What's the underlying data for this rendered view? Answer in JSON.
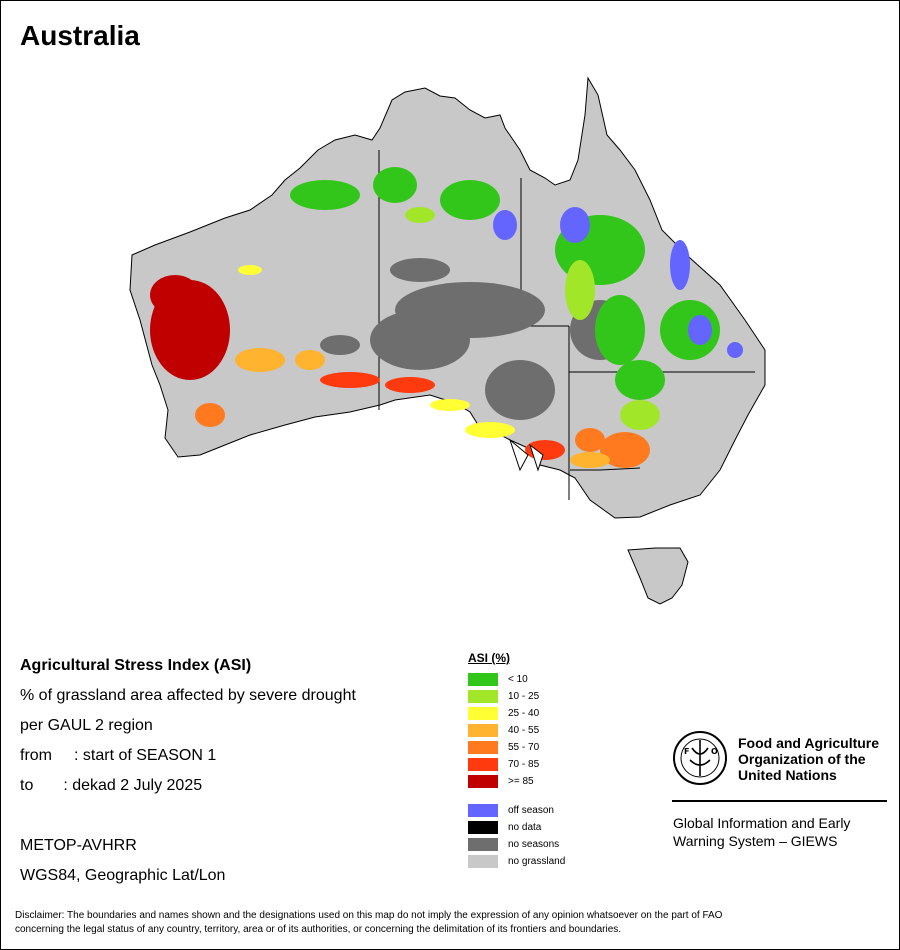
{
  "map_title": "Australia",
  "info": {
    "title": "Agricultural Stress Index (ASI)",
    "line1": "% of grassland area affected by severe drought",
    "line2": "per GAUL 2 region",
    "from_label": "from",
    "from_value": ": start of SEASON 1",
    "to_label": "to",
    "to_value": ": dekad 2 July 2025",
    "sensor": "METOP-AVHRR",
    "projection": "WGS84, Geographic Lat/Lon"
  },
  "legend": {
    "title": "ASI (%)",
    "classes": [
      {
        "label": "< 10",
        "color": "#33c61a"
      },
      {
        "label": "10 - 25",
        "color": "#a2e62a"
      },
      {
        "label": "25 - 40",
        "color": "#ffff33"
      },
      {
        "label": "40 - 55",
        "color": "#ffb32e"
      },
      {
        "label": "55 - 70",
        "color": "#ff7a1f"
      },
      {
        "label": "70 - 85",
        "color": "#ff3a0f"
      },
      {
        "label": ">= 85",
        "color": "#c00000"
      }
    ],
    "other": [
      {
        "label": "off season",
        "color": "#6464ff"
      },
      {
        "label": "no data",
        "color": "#000000"
      },
      {
        "label": "no seasons",
        "color": "#6e6e6e"
      },
      {
        "label": "no grassland",
        "color": "#c8c8c8"
      }
    ]
  },
  "fao": {
    "line1": "Food and Agriculture",
    "line2": "Organization of the",
    "line3": "United Nations",
    "giews1": "Global Information and Early",
    "giews2": "Warning System – GIEWS"
  },
  "disclaimer": {
    "line1": "Disclaimer: The boundaries and names shown and the designations used on this map do not imply the expression of any opinion whatsoever on the part of FAO",
    "line2": "concerning the legal status of any country, territory, area or of its authorities, or concerning the delimitation of its frontiers and boundaries."
  }
}
